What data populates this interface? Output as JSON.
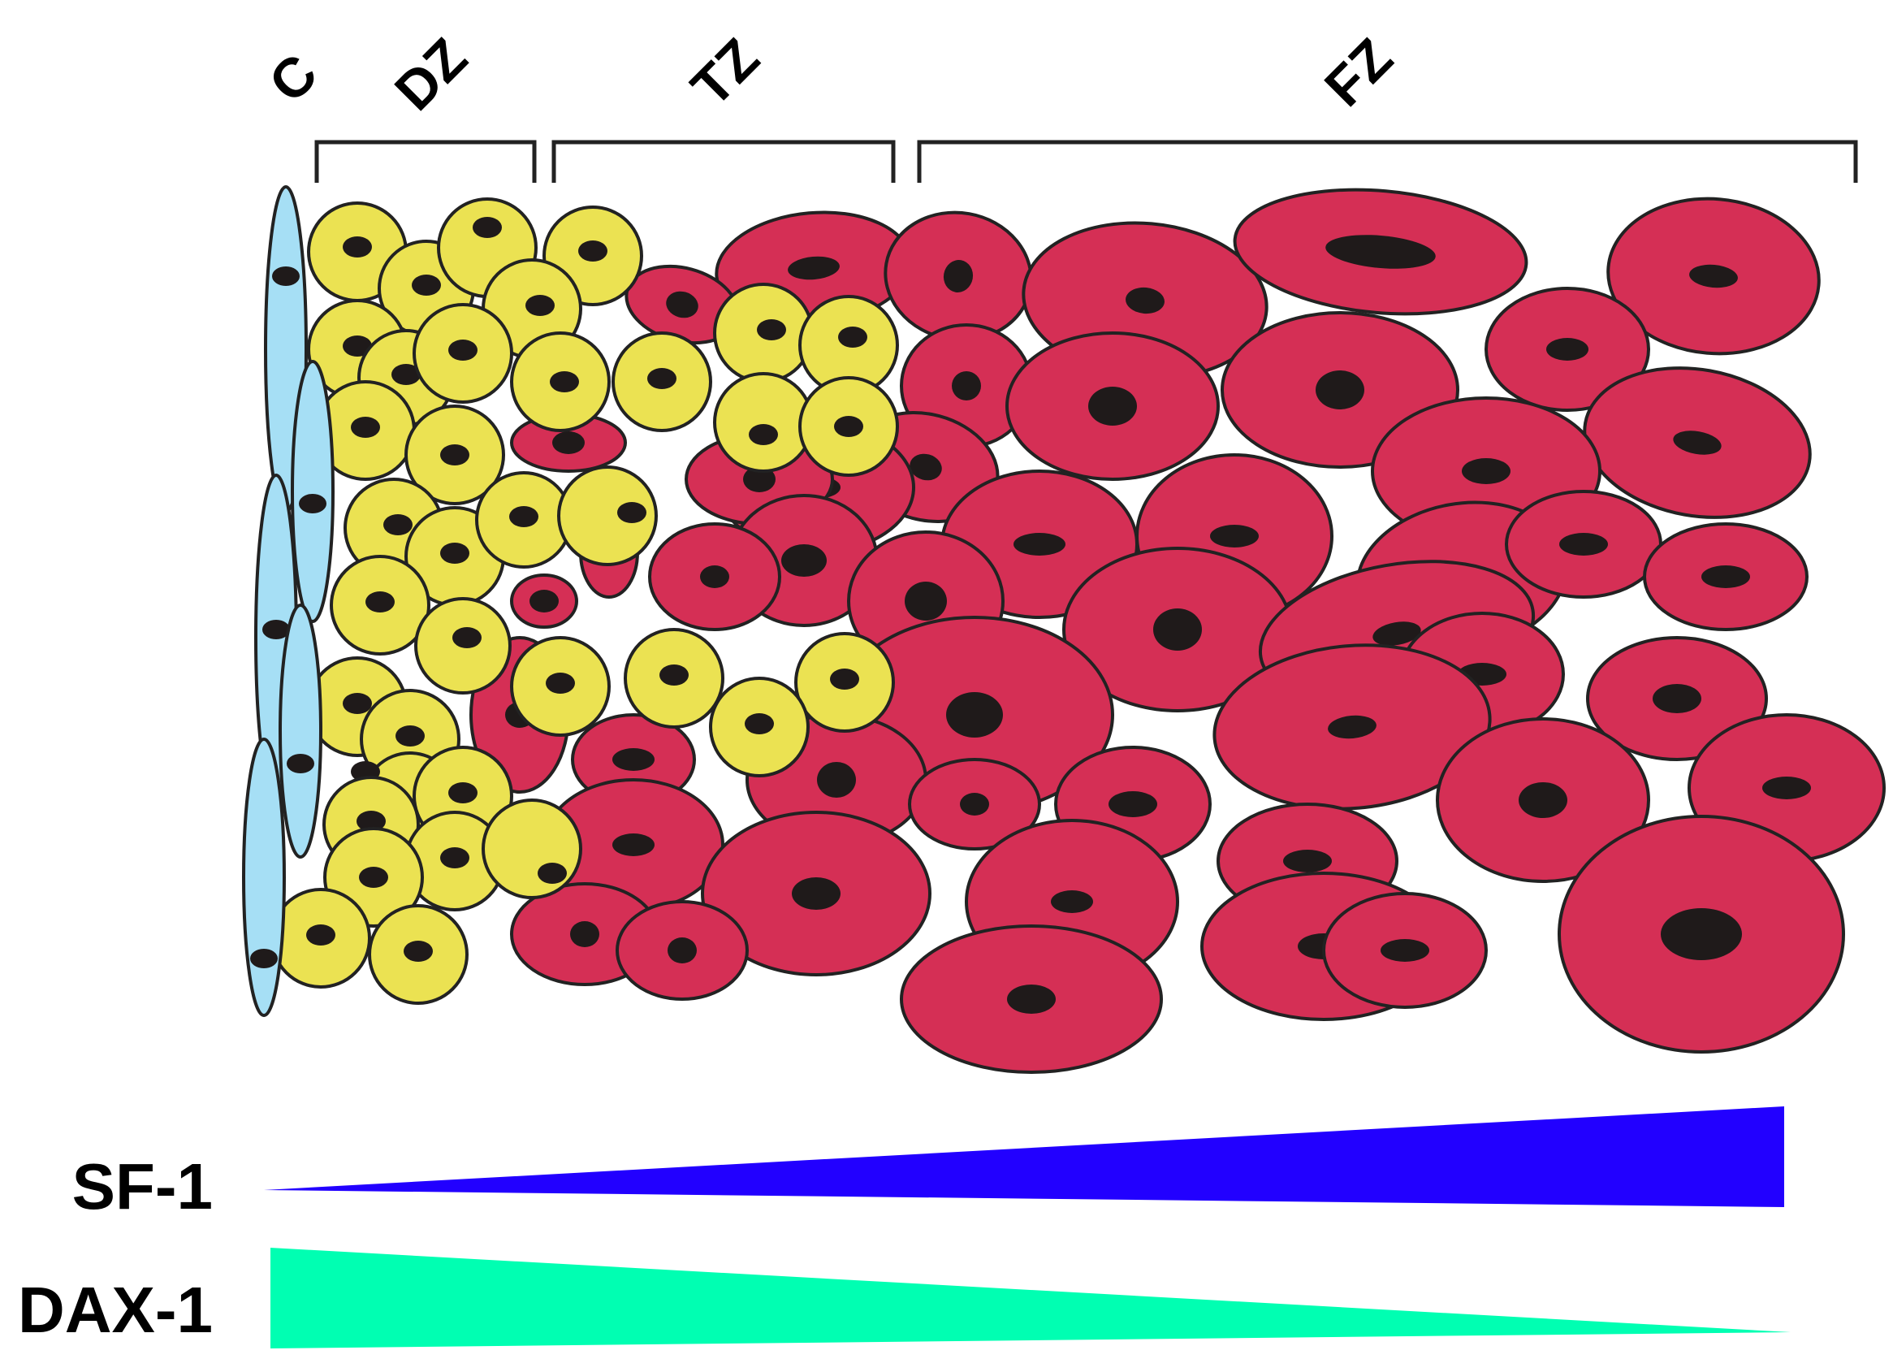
{
  "zones": [
    {
      "id": "c",
      "label": "C"
    },
    {
      "id": "dz",
      "label": "DZ"
    },
    {
      "id": "tz",
      "label": "TZ"
    },
    {
      "id": "fz",
      "label": "FZ"
    }
  ],
  "cell_types": {
    "capsule": {
      "color": "#a6dff5"
    },
    "dz_cell": {
      "color": "#ebe252"
    },
    "fz_cell": {
      "color": "#d52f55"
    }
  },
  "gradients": [
    {
      "id": "sf1",
      "label": "SF-1",
      "color": "#2200ff",
      "direction": "increasing"
    },
    {
      "id": "dax1",
      "label": "DAX-1",
      "color": "#00ffb2",
      "direction": "decreasing"
    }
  ]
}
